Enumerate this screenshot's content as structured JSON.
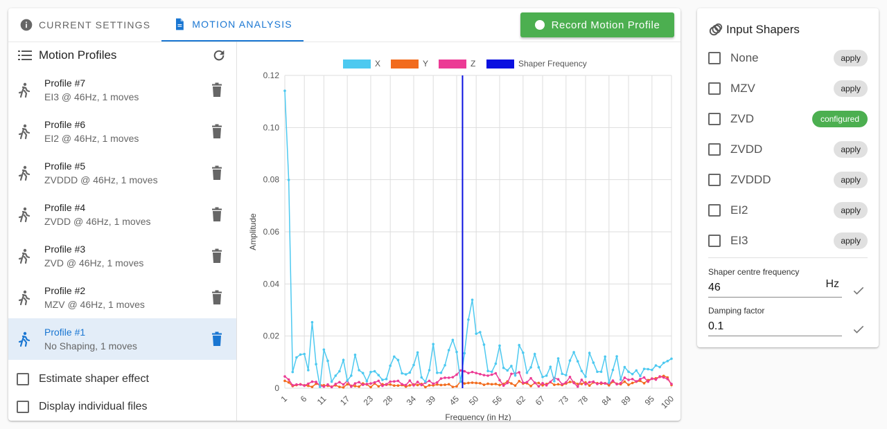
{
  "tabs": [
    {
      "label": "CURRENT SETTINGS"
    },
    {
      "label": "MOTION ANALYSIS"
    }
  ],
  "record_button": {
    "label": "Record Motion Profile"
  },
  "motion_profiles": {
    "title": "Motion Profiles",
    "items": [
      {
        "name": "Profile #7",
        "desc": "EI3 @ 46Hz, 1 moves"
      },
      {
        "name": "Profile #6",
        "desc": "EI2 @ 46Hz, 1 moves"
      },
      {
        "name": "Profile #5",
        "desc": "ZVDDD @ 46Hz, 1 moves"
      },
      {
        "name": "Profile #4",
        "desc": "ZVDD @ 46Hz, 1 moves"
      },
      {
        "name": "Profile #3",
        "desc": "ZVD @ 46Hz, 1 moves"
      },
      {
        "name": "Profile #2",
        "desc": "MZV @ 46Hz, 1 moves"
      },
      {
        "name": "Profile #1",
        "desc": "No Shaping, 1 moves"
      }
    ],
    "selected_index": 6
  },
  "options": {
    "estimate_label": "Estimate shaper effect",
    "display_label": "Display individual files"
  },
  "chart_data": {
    "type": "line",
    "xlabel": "Frequency (in Hz)",
    "ylabel": "Amplitude",
    "ylim": [
      0,
      0.12
    ],
    "yticks": [
      "0",
      "0.02",
      "0.04",
      "0.06",
      "0.08",
      "0.10",
      "0.12"
    ],
    "xticks": [
      "1",
      "6",
      "11",
      "17",
      "23",
      "28",
      "34",
      "39",
      "45",
      "50",
      "56",
      "62",
      "67",
      "73",
      "78",
      "84",
      "89",
      "95",
      "100"
    ],
    "xlim": [
      1,
      100
    ],
    "grid": true,
    "legend": "top",
    "legend_items": [
      {
        "name": "X",
        "color": "#4dc9f0"
      },
      {
        "name": "Y",
        "color": "#f26b1d"
      },
      {
        "name": "Z",
        "color": "#ec3b95"
      },
      {
        "name": "Shaper Frequency",
        "color": "#0a10e0"
      }
    ],
    "shaper_frequency": 46.5,
    "series": [
      {
        "name": "X",
        "color": "#4dc9f0",
        "values": [
          0.1141,
          0.0799,
          0.0062,
          0.0118,
          0.0129,
          0.0131,
          0.0069,
          0.0253,
          0.0092,
          0.0005,
          0.0148,
          0.0105,
          0.0025,
          0.0048,
          0.0065,
          0.0108,
          0.0029,
          0.0048,
          0.0128,
          0.0069,
          0.0058,
          0.0027,
          0.0062,
          0.0065,
          0.005,
          0.0032,
          0.0035,
          0.0086,
          0.0121,
          0.0108,
          0.0057,
          0.0053,
          0.006,
          0.0089,
          0.0137,
          0.0041,
          0.0025,
          0.0069,
          0.0169,
          0.0059,
          0.0059,
          0.0088,
          0.0146,
          0.0185,
          0.0139,
          0.0025,
          0.0134,
          0.0263,
          0.0339,
          0.0209,
          0.0215,
          0.0167,
          0.0066,
          0.0063,
          0.0094,
          0.0163,
          0.0078,
          0.0068,
          0.0085,
          0.0049,
          0.0165,
          0.0136,
          0.0059,
          0.008,
          0.0131,
          0.008,
          0.0043,
          0.0048,
          0.0082,
          0.0027,
          0.0114,
          0.0055,
          0.005,
          0.0106,
          0.0138,
          0.0103,
          0.0066,
          0.0044,
          0.0135,
          0.0098,
          0.0063,
          0.0063,
          0.0121,
          0.0021,
          0.007,
          0.0122,
          0.0033,
          0.0081,
          0.0063,
          0.0054,
          0.0068,
          0.0047,
          0.0074,
          0.0073,
          0.007,
          0.0087,
          0.0081,
          0.0097,
          0.0104,
          0.0113
        ]
      },
      {
        "name": "Y",
        "color": "#f26b1d",
        "values": [
          0.0028,
          0.0022,
          0.0008,
          0.0012,
          0.0015,
          0.0011,
          0.0009,
          0.0005,
          0.0017,
          0.0013,
          0.0011,
          0.0009,
          0.0006,
          0.0011,
          0.0005,
          0.0003,
          0.0015,
          0.0009,
          0.0008,
          0.0006,
          0.0018,
          0.0014,
          0.0004,
          0.0018,
          0.0007,
          0.0015,
          0.0013,
          0.0014,
          0.001,
          0.001,
          0.0012,
          0.0006,
          0.0011,
          0.0014,
          0.0012,
          0.0016,
          0.0004,
          0.0011,
          0.0011,
          0.0014,
          0.0012,
          0.0013,
          0.0015,
          0.0005,
          0.0007,
          0.0026,
          0.0018,
          0.002,
          0.0021,
          0.002,
          0.0019,
          0.0013,
          0.0017,
          0.0015,
          0.0016,
          0.0012,
          0.0016,
          0.0026,
          0.0018,
          0.001,
          0.0027,
          0.0018,
          0.0019,
          0.0008,
          0.002,
          0.002,
          0.0011,
          0.0016,
          0.0023,
          0.0013,
          0.0015,
          0.0012,
          0.0018,
          0.0024,
          0.0023,
          0.0016,
          0.0016,
          0.0022,
          0.001,
          0.0022,
          0.0019,
          0.0017,
          0.0019,
          0.0011,
          0.0025,
          0.0017,
          0.0015,
          0.0025,
          0.0013,
          0.002,
          0.0025,
          0.0028,
          0.0019,
          0.0031,
          0.0036,
          0.0038,
          0.0043,
          0.0047,
          0.0041,
          0.0012
        ]
      },
      {
        "name": "Z",
        "color": "#ec3b95",
        "values": [
          0.0045,
          0.0033,
          0.0011,
          0.0014,
          0.0014,
          0.001,
          0.0017,
          0.0025,
          0.0024,
          0.0009,
          0.0006,
          0.0014,
          0.0004,
          0.0016,
          0.0023,
          0.0014,
          0.0028,
          0.0006,
          0.0018,
          0.0023,
          0.0013,
          0.0016,
          0.0018,
          0.0022,
          0.0028,
          0.0009,
          0.0015,
          0.0025,
          0.0026,
          0.0028,
          0.0015,
          0.0012,
          0.0029,
          0.0011,
          0.0024,
          0.0012,
          0.0021,
          0.0028,
          0.0017,
          0.0022,
          0.0037,
          0.004,
          0.004,
          0.0042,
          0.0052,
          0.0068,
          0.0065,
          0.0058,
          0.0062,
          0.0058,
          0.0054,
          0.005,
          0.0048,
          0.0052,
          0.0057,
          0.0031,
          0.001,
          0.002,
          0.0055,
          0.0056,
          0.0061,
          0.0021,
          0.0023,
          0.0038,
          0.0021,
          0.0007,
          0.0019,
          0.0011,
          0.0024,
          0.0039,
          0.0034,
          0.0015,
          0.0022,
          0.0043,
          0.002,
          0.0006,
          0.0032,
          0.0015,
          0.0023,
          0.0025,
          0.0016,
          0.0021,
          0.0018,
          0.0018,
          0.0029,
          0.0015,
          0.0019,
          0.004,
          0.0032,
          0.0035,
          0.0026,
          0.0035,
          0.0041,
          0.0025,
          0.0037,
          0.0033,
          0.0045,
          0.0041,
          0.0035,
          0.0016
        ]
      }
    ]
  },
  "input_shapers": {
    "title": "Input Shapers",
    "items": [
      {
        "label": "None",
        "chip": "apply"
      },
      {
        "label": "MZV",
        "chip": "apply"
      },
      {
        "label": "ZVD",
        "chip": "configured"
      },
      {
        "label": "ZVDD",
        "chip": "apply"
      },
      {
        "label": "ZVDDD",
        "chip": "apply"
      },
      {
        "label": "EI2",
        "chip": "apply"
      },
      {
        "label": "EI3",
        "chip": "apply"
      }
    ],
    "freq_label": "Shaper centre frequency",
    "freq_value": "46",
    "freq_unit": "Hz",
    "damping_label": "Damping factor",
    "damping_value": "0.1"
  },
  "colors": {
    "accent": "#1976d2",
    "green": "#4caf50"
  }
}
